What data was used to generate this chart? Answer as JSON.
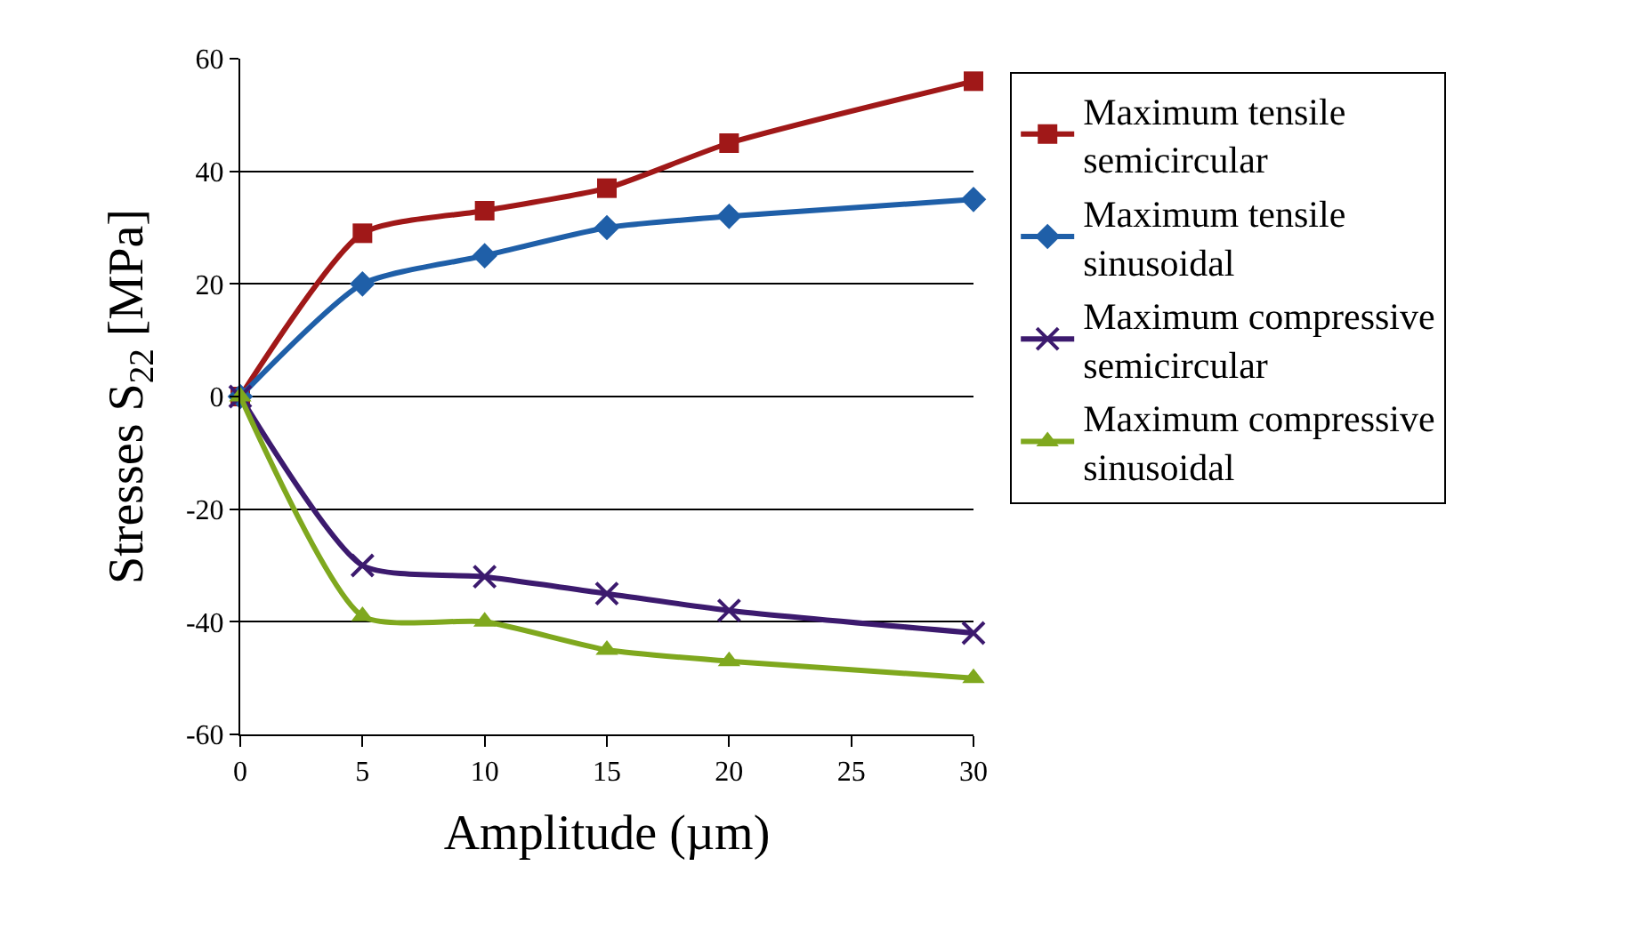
{
  "chart_data": {
    "type": "line",
    "xlabel": "Amplitude (µm)",
    "ylabel": "Stresses S$_{22}$ [MPa]",
    "x": [
      0,
      5,
      10,
      15,
      20,
      30
    ],
    "xlim": [
      0,
      30
    ],
    "xticks": [
      0,
      5,
      10,
      15,
      20,
      25,
      30
    ],
    "ylim": [
      -60,
      60
    ],
    "yticks": [
      -60,
      -40,
      -20,
      0,
      20,
      40,
      60
    ],
    "grid": "y",
    "legend": "right",
    "line_style": "solid",
    "series": [
      {
        "name": "Maximum tensile\nsemicircular",
        "color": "#a01818",
        "marker": "square",
        "values": [
          0,
          29,
          33,
          37,
          45,
          56
        ]
      },
      {
        "name": "Maximum tensile\nsinusoidal",
        "color": "#1f5fa8",
        "marker": "diamond",
        "values": [
          0,
          20,
          25,
          30,
          32,
          35
        ]
      },
      {
        "name": "Maximum compressive\nsemicircular",
        "color": "#3c1a6e",
        "marker": "cross",
        "values": [
          0,
          -30,
          -32,
          -35,
          -38,
          -42
        ]
      },
      {
        "name": "Maximum compressive\nsinusoidal",
        "color": "#7fa81e",
        "marker": "triangle",
        "values": [
          0,
          -39,
          -40,
          -45,
          -47,
          -50
        ]
      }
    ]
  }
}
